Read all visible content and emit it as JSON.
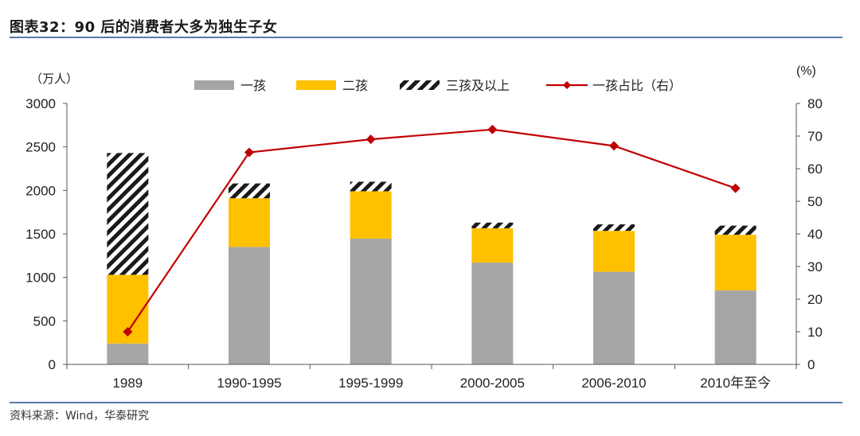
{
  "figure_title": "图表32：90 后的消费者大多为独生子女",
  "source_note": "资料来源：Wind，华泰研究",
  "colors": {
    "one_child": "#a6a6a6",
    "two_children": "#ffc000",
    "three_plus": "#1a1a1a",
    "ratio_line": "#c00000",
    "rule": "#5b7ba6"
  },
  "chart_data": {
    "type": "bar",
    "stacked": true,
    "categories": [
      "1989",
      "1990-1995",
      "1995-1999",
      "2000-2005",
      "2006-2010",
      "2010年至今"
    ],
    "left_axis_label": "（万人）",
    "right_axis_label": "(%)",
    "ylim_left": [
      0,
      3000
    ],
    "yticks_left": [
      "0",
      "500",
      "1000",
      "1500",
      "2000",
      "2500",
      "3000"
    ],
    "ylim_right": [
      0,
      80
    ],
    "yticks_right": [
      "0",
      "10",
      "20",
      "30",
      "40",
      "50",
      "60",
      "70",
      "80"
    ],
    "series": [
      {
        "name": "一孩",
        "kind": "bar",
        "color": "#a6a6a6",
        "values": [
          240,
          1350,
          1445,
          1170,
          1065,
          850
        ]
      },
      {
        "name": "二孩",
        "kind": "bar",
        "color": "#ffc000",
        "values": [
          790,
          560,
          545,
          395,
          470,
          640
        ]
      },
      {
        "name": "三孩及以上",
        "kind": "bar",
        "pattern": "hatch",
        "values": [
          1400,
          170,
          110,
          65,
          75,
          105
        ]
      },
      {
        "name": "一孩占比（右）",
        "kind": "line",
        "axis": "right",
        "color": "#c00000",
        "values": [
          10,
          65,
          69,
          72,
          67,
          54
        ]
      }
    ],
    "legend_position": "top",
    "grid": false
  }
}
